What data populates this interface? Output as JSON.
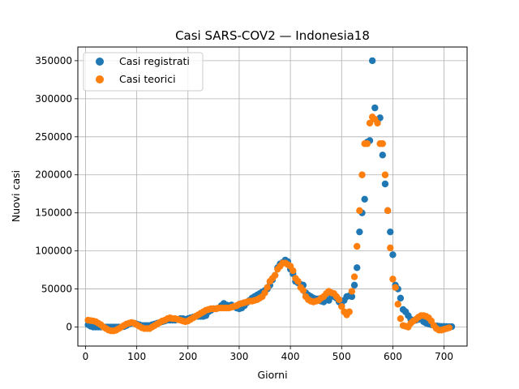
{
  "chart_data": {
    "type": "scatter",
    "title": "Casi SARS-COV2 — Indonesia18",
    "xlabel": "Giorni",
    "ylabel": "Nuovi casi",
    "xlim": [
      -15,
      745
    ],
    "ylim": [
      -25000,
      368000
    ],
    "xticks": [
      0,
      100,
      200,
      300,
      400,
      500,
      600,
      700
    ],
    "yticks": [
      0,
      50000,
      100000,
      150000,
      200000,
      250000,
      300000,
      350000
    ],
    "grid": true,
    "legend": "top-left",
    "series": [
      {
        "name": "Casi registrati",
        "color": "#1f77b4",
        "points": [
          [
            5,
            3000
          ],
          [
            10,
            1000
          ],
          [
            15,
            0
          ],
          [
            20,
            0
          ],
          [
            25,
            0
          ],
          [
            30,
            0
          ],
          [
            35,
            0
          ],
          [
            40,
            0
          ],
          [
            45,
            0
          ],
          [
            50,
            0
          ],
          [
            55,
            0
          ],
          [
            60,
            0
          ],
          [
            65,
            0
          ],
          [
            70,
            0
          ],
          [
            75,
            500
          ],
          [
            80,
            2000
          ],
          [
            85,
            4000
          ],
          [
            90,
            5000
          ],
          [
            95,
            5000
          ],
          [
            100,
            4000
          ],
          [
            105,
            3000
          ],
          [
            110,
            2000
          ],
          [
            115,
            2000
          ],
          [
            120,
            2000
          ],
          [
            125,
            2000
          ],
          [
            130,
            3000
          ],
          [
            135,
            4000
          ],
          [
            140,
            5000
          ],
          [
            145,
            6000
          ],
          [
            150,
            7000
          ],
          [
            155,
            8000
          ],
          [
            160,
            9000
          ],
          [
            165,
            9000
          ],
          [
            170,
            9000
          ],
          [
            175,
            9000
          ],
          [
            180,
            10000
          ],
          [
            185,
            11000
          ],
          [
            190,
            11000
          ],
          [
            195,
            10000
          ],
          [
            200,
            11000
          ],
          [
            205,
            12000
          ],
          [
            210,
            13000
          ],
          [
            215,
            14000
          ],
          [
            220,
            14000
          ],
          [
            225,
            14000
          ],
          [
            230,
            14000
          ],
          [
            235,
            15000
          ],
          [
            240,
            20000
          ],
          [
            245,
            22000
          ],
          [
            250,
            24000
          ],
          [
            255,
            24000
          ],
          [
            260,
            25000
          ],
          [
            265,
            28000
          ],
          [
            270,
            31000
          ],
          [
            275,
            29000
          ],
          [
            280,
            28000
          ],
          [
            285,
            29000
          ],
          [
            290,
            27000
          ],
          [
            295,
            25000
          ],
          [
            300,
            24000
          ],
          [
            305,
            25000
          ],
          [
            310,
            28000
          ],
          [
            315,
            32000
          ],
          [
            320,
            35000
          ],
          [
            325,
            38000
          ],
          [
            330,
            40000
          ],
          [
            335,
            42000
          ],
          [
            340,
            44000
          ],
          [
            345,
            46000
          ],
          [
            350,
            48000
          ],
          [
            355,
            50000
          ],
          [
            360,
            55000
          ],
          [
            365,
            62000
          ],
          [
            370,
            68000
          ],
          [
            375,
            78000
          ],
          [
            380,
            83000
          ],
          [
            385,
            85000
          ],
          [
            390,
            88000
          ],
          [
            395,
            86000
          ],
          [
            400,
            76000
          ],
          [
            405,
            70000
          ],
          [
            410,
            60000
          ],
          [
            415,
            58000
          ],
          [
            420,
            56000
          ],
          [
            425,
            55000
          ],
          [
            430,
            45000
          ],
          [
            435,
            42000
          ],
          [
            440,
            40000
          ],
          [
            445,
            38000
          ],
          [
            450,
            37000
          ],
          [
            455,
            37000
          ],
          [
            460,
            34000
          ],
          [
            465,
            33000
          ],
          [
            470,
            36000
          ],
          [
            475,
            35000
          ],
          [
            480,
            42000
          ],
          [
            485,
            40000
          ],
          [
            490,
            38000
          ],
          [
            495,
            33000
          ],
          [
            500,
            28000
          ],
          [
            505,
            35000
          ],
          [
            510,
            40000
          ],
          [
            515,
            41000
          ],
          [
            520,
            40000
          ],
          [
            525,
            55000
          ],
          [
            530,
            78000
          ],
          [
            535,
            125000
          ],
          [
            540,
            150000
          ],
          [
            545,
            168000
          ],
          [
            550,
            243000
          ],
          [
            555,
            245000
          ],
          [
            560,
            350000
          ],
          [
            565,
            288000
          ],
          [
            570,
            270000
          ],
          [
            575,
            275000
          ],
          [
            580,
            226000
          ],
          [
            585,
            188000
          ],
          [
            590,
            153000
          ],
          [
            595,
            125000
          ],
          [
            600,
            95000
          ],
          [
            605,
            55000
          ],
          [
            610,
            50000
          ],
          [
            615,
            38000
          ],
          [
            620,
            23000
          ],
          [
            625,
            20000
          ],
          [
            630,
            15000
          ],
          [
            635,
            10000
          ],
          [
            640,
            8000
          ],
          [
            645,
            9000
          ],
          [
            650,
            10000
          ],
          [
            655,
            11000
          ],
          [
            660,
            7000
          ],
          [
            665,
            5000
          ],
          [
            670,
            4000
          ],
          [
            675,
            3000
          ],
          [
            680,
            2000
          ],
          [
            685,
            1500
          ],
          [
            690,
            1000
          ],
          [
            695,
            800
          ],
          [
            700,
            700
          ],
          [
            705,
            600
          ],
          [
            710,
            500
          ],
          [
            715,
            500
          ]
        ]
      },
      {
        "name": "Casi teorici",
        "color": "#ff7f0e",
        "points": [
          [
            5,
            9000
          ],
          [
            10,
            8500
          ],
          [
            15,
            8000
          ],
          [
            20,
            7000
          ],
          [
            25,
            5000
          ],
          [
            30,
            3000
          ],
          [
            35,
            0
          ],
          [
            40,
            -2000
          ],
          [
            45,
            -4000
          ],
          [
            50,
            -5000
          ],
          [
            55,
            -5000
          ],
          [
            60,
            -4000
          ],
          [
            65,
            -2000
          ],
          [
            70,
            0
          ],
          [
            75,
            2000
          ],
          [
            80,
            4000
          ],
          [
            85,
            5000
          ],
          [
            90,
            6000
          ],
          [
            95,
            5000
          ],
          [
            100,
            3000
          ],
          [
            105,
            1000
          ],
          [
            110,
            -1000
          ],
          [
            115,
            -2000
          ],
          [
            120,
            -2000
          ],
          [
            125,
            -2000
          ],
          [
            130,
            0
          ],
          [
            135,
            2000
          ],
          [
            140,
            4000
          ],
          [
            145,
            6000
          ],
          [
            150,
            8000
          ],
          [
            155,
            9000
          ],
          [
            160,
            11000
          ],
          [
            165,
            12000
          ],
          [
            170,
            11000
          ],
          [
            175,
            11000
          ],
          [
            180,
            10000
          ],
          [
            185,
            9000
          ],
          [
            190,
            8000
          ],
          [
            195,
            7000
          ],
          [
            200,
            8000
          ],
          [
            205,
            10000
          ],
          [
            210,
            12000
          ],
          [
            215,
            14000
          ],
          [
            220,
            16000
          ],
          [
            225,
            18000
          ],
          [
            230,
            20000
          ],
          [
            235,
            22000
          ],
          [
            240,
            23000
          ],
          [
            245,
            24000
          ],
          [
            250,
            24000
          ],
          [
            255,
            24000
          ],
          [
            260,
            25000
          ],
          [
            265,
            25000
          ],
          [
            270,
            25000
          ],
          [
            275,
            25000
          ],
          [
            280,
            25000
          ],
          [
            285,
            26000
          ],
          [
            290,
            27000
          ],
          [
            295,
            28000
          ],
          [
            300,
            30000
          ],
          [
            305,
            31000
          ],
          [
            310,
            32000
          ],
          [
            315,
            33000
          ],
          [
            320,
            34000
          ],
          [
            325,
            34000
          ],
          [
            330,
            35000
          ],
          [
            335,
            36000
          ],
          [
            340,
            38000
          ],
          [
            345,
            40000
          ],
          [
            350,
            45000
          ],
          [
            355,
            52000
          ],
          [
            360,
            60000
          ],
          [
            365,
            64000
          ],
          [
            370,
            68000
          ],
          [
            375,
            76000
          ],
          [
            380,
            80000
          ],
          [
            385,
            84000
          ],
          [
            390,
            84000
          ],
          [
            395,
            82000
          ],
          [
            400,
            80000
          ],
          [
            405,
            74000
          ],
          [
            410,
            64000
          ],
          [
            415,
            60000
          ],
          [
            420,
            52000
          ],
          [
            425,
            48000
          ],
          [
            430,
            40000
          ],
          [
            435,
            36000
          ],
          [
            440,
            34000
          ],
          [
            445,
            33000
          ],
          [
            450,
            34000
          ],
          [
            455,
            35000
          ],
          [
            460,
            38000
          ],
          [
            465,
            40000
          ],
          [
            470,
            44000
          ],
          [
            475,
            47000
          ],
          [
            480,
            45000
          ],
          [
            485,
            44000
          ],
          [
            490,
            40000
          ],
          [
            495,
            36000
          ],
          [
            500,
            27000
          ],
          [
            505,
            20000
          ],
          [
            510,
            16000
          ],
          [
            515,
            20000
          ],
          [
            520,
            47000
          ],
          [
            525,
            66000
          ],
          [
            530,
            106000
          ],
          [
            535,
            153000
          ],
          [
            540,
            200000
          ],
          [
            545,
            241000
          ],
          [
            550,
            241000
          ],
          [
            555,
            268000
          ],
          [
            560,
            276000
          ],
          [
            565,
            273000
          ],
          [
            570,
            268000
          ],
          [
            575,
            241000
          ],
          [
            580,
            241000
          ],
          [
            585,
            200000
          ],
          [
            590,
            153000
          ],
          [
            595,
            104000
          ],
          [
            600,
            63000
          ],
          [
            605,
            52000
          ],
          [
            610,
            30000
          ],
          [
            615,
            11000
          ],
          [
            620,
            2000
          ],
          [
            625,
            1000
          ],
          [
            630,
            0
          ],
          [
            635,
            5000
          ],
          [
            640,
            8000
          ],
          [
            645,
            10000
          ],
          [
            650,
            13000
          ],
          [
            655,
            15000
          ],
          [
            660,
            15000
          ],
          [
            665,
            14000
          ],
          [
            670,
            12000
          ],
          [
            675,
            8000
          ],
          [
            680,
            2000
          ],
          [
            685,
            -2000
          ],
          [
            690,
            -4000
          ],
          [
            695,
            -4000
          ],
          [
            700,
            -3000
          ],
          [
            705,
            -2000
          ],
          [
            710,
            -1000
          ]
        ]
      }
    ]
  }
}
